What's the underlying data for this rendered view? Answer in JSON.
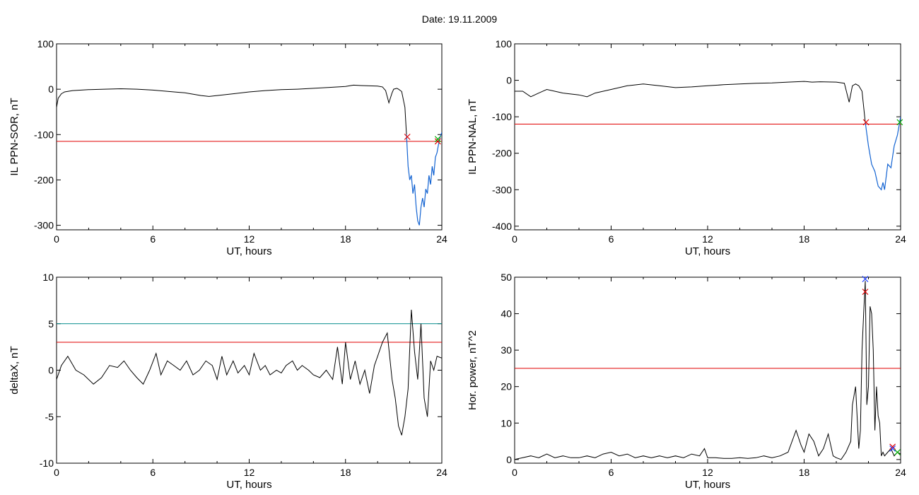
{
  "page": {
    "title": "Date:  19.11.2009"
  },
  "colors": {
    "trace": "#000000",
    "highlight": "#1464d2",
    "red": "#e00000",
    "green": "#00b000",
    "teal": "#008c8c",
    "blue": "#2040ff"
  },
  "chart_data": [
    {
      "type": "line",
      "xlabel": "UT, hours",
      "ylabel": "IL PPN-SOR, nT",
      "xlim": [
        0,
        24
      ],
      "ylim": [
        -310,
        100
      ],
      "xticks": [
        0,
        6,
        12,
        18,
        24
      ],
      "yticks": [
        100,
        0,
        -100,
        -200,
        -300
      ],
      "series": [
        {
          "x": [
            0,
            0.1,
            0.3,
            0.5,
            1,
            2,
            3,
            4,
            5,
            6,
            7,
            8,
            9,
            9.5,
            10,
            11,
            12,
            13,
            14,
            15,
            16,
            17,
            18,
            18.5,
            19,
            20,
            20.3,
            20.5,
            20.7,
            20.9,
            21,
            21.2,
            21.3,
            21.5,
            21.7,
            21.8,
            21.9,
            22,
            22.1,
            22.2,
            22.3,
            22.4,
            22.5,
            22.6,
            22.7,
            22.8,
            22.9,
            23,
            23.1,
            23.2,
            23.3,
            23.4,
            23.5,
            23.6,
            23.7,
            23.8,
            23.9,
            24
          ],
          "y": [
            -40,
            -20,
            -10,
            -6,
            -3,
            -1,
            0,
            1,
            0,
            -2,
            -5,
            -8,
            -14,
            -16,
            -14,
            -10,
            -6,
            -3,
            -1,
            0,
            2,
            4,
            6,
            9,
            8,
            7,
            5,
            -3,
            -30,
            -8,
            0,
            2,
            0,
            -5,
            -40,
            -100,
            -170,
            -200,
            -190,
            -230,
            -210,
            -260,
            -290,
            -300,
            -260,
            -240,
            -260,
            -220,
            -230,
            -190,
            -210,
            -170,
            -190,
            -150,
            -140,
            -120,
            -105,
            -95
          ],
          "highlight_from_x": 21.8
        }
      ],
      "threshold_lines": [
        {
          "y": -115,
          "color": "red"
        }
      ],
      "markers": [
        {
          "x": 21.85,
          "y": -105,
          "shape": "x",
          "color": "red"
        },
        {
          "x": 23.75,
          "y": -115,
          "shape": "x",
          "color": "red"
        },
        {
          "x": 23.75,
          "y": -110,
          "shape": "x",
          "color": "green"
        }
      ]
    },
    {
      "type": "line",
      "xlabel": "UT, hours",
      "ylabel": "IL PPN-NAL, nT",
      "xlim": [
        0,
        24
      ],
      "ylim": [
        -410,
        100
      ],
      "xticks": [
        0,
        6,
        12,
        18,
        24
      ],
      "yticks": [
        100,
        0,
        -100,
        -200,
        -300,
        -400
      ],
      "series": [
        {
          "x": [
            0,
            0.5,
            1,
            1.5,
            2,
            3,
            4,
            4.5,
            5,
            6,
            7,
            8,
            9,
            10,
            11,
            12,
            13,
            14,
            15,
            16,
            17,
            18,
            18.5,
            19,
            20,
            20.5,
            20.8,
            21,
            21.2,
            21.4,
            21.6,
            21.8,
            22,
            22.2,
            22.4,
            22.6,
            22.8,
            22.9,
            23,
            23.2,
            23.4,
            23.6,
            23.8,
            24
          ],
          "y": [
            -30,
            -30,
            -45,
            -35,
            -25,
            -35,
            -40,
            -45,
            -35,
            -25,
            -15,
            -10,
            -15,
            -20,
            -18,
            -15,
            -12,
            -10,
            -8,
            -7,
            -5,
            -3,
            -5,
            -4,
            -5,
            -8,
            -60,
            -15,
            -10,
            -15,
            -30,
            -115,
            -180,
            -230,
            -250,
            -290,
            -300,
            -280,
            -300,
            -230,
            -240,
            -180,
            -150,
            -100
          ],
          "highlight_from_x": 21.8
        }
      ],
      "threshold_lines": [
        {
          "y": -120,
          "color": "red"
        }
      ],
      "markers": [
        {
          "x": 21.85,
          "y": -115,
          "shape": "x",
          "color": "red"
        },
        {
          "x": 23.95,
          "y": -115,
          "shape": "x",
          "color": "green"
        }
      ]
    },
    {
      "type": "line",
      "xlabel": "UT, hours",
      "ylabel": "deltaX, nT",
      "xlim": [
        0,
        24
      ],
      "ylim": [
        -10,
        10
      ],
      "xticks": [
        0,
        6,
        12,
        18,
        24
      ],
      "yticks": [
        10,
        5,
        0,
        -5,
        -10
      ],
      "series": [
        {
          "x": [
            0,
            0.3,
            0.7,
            1.2,
            1.7,
            2.3,
            2.8,
            3.3,
            3.8,
            4.2,
            4.6,
            5,
            5.4,
            5.8,
            6.2,
            6.5,
            6.9,
            7.3,
            7.7,
            8.1,
            8.5,
            8.9,
            9.3,
            9.7,
            10,
            10.3,
            10.6,
            11,
            11.3,
            11.7,
            12,
            12.3,
            12.7,
            13,
            13.3,
            13.7,
            14,
            14.3,
            14.7,
            15,
            15.3,
            15.7,
            16,
            16.4,
            16.8,
            17.2,
            17.5,
            17.8,
            18,
            18.3,
            18.6,
            18.9,
            19.2,
            19.5,
            19.8,
            20,
            20.3,
            20.6,
            20.9,
            21.1,
            21.3,
            21.5,
            21.7,
            21.9,
            22.1,
            22.3,
            22.5,
            22.7,
            22.9,
            23.1,
            23.3,
            23.5,
            23.7,
            24
          ],
          "y": [
            -1,
            0.5,
            1.5,
            0,
            -0.5,
            -1.5,
            -0.8,
            0.5,
            0.3,
            1,
            0,
            -0.8,
            -1.5,
            0,
            1.8,
            -0.5,
            1,
            0.5,
            0,
            1,
            -0.5,
            0,
            1,
            0.5,
            -1,
            1.5,
            -0.5,
            1,
            -0.3,
            0.5,
            -0.5,
            1.8,
            0,
            0.5,
            -0.5,
            0,
            -0.3,
            0.5,
            1,
            0,
            0.5,
            0,
            -0.5,
            -0.8,
            0,
            -1,
            2.5,
            -1.5,
            3,
            -1,
            1,
            -1.5,
            0,
            -2.5,
            0.5,
            1.5,
            3,
            4,
            -1,
            -3,
            -6,
            -7,
            -5,
            -2,
            6.5,
            2,
            -1,
            5,
            -3,
            -5,
            1,
            0,
            1.5,
            1.3
          ]
        }
      ],
      "threshold_lines": [
        {
          "y": 5,
          "color": "teal"
        },
        {
          "y": 3,
          "color": "red"
        }
      ],
      "markers": []
    },
    {
      "type": "line",
      "xlabel": "UT, hours",
      "ylabel": "Hor. power, nT^2",
      "xlim": [
        0,
        24
      ],
      "ylim": [
        -1,
        50
      ],
      "xticks": [
        0,
        6,
        12,
        18,
        24
      ],
      "yticks": [
        50,
        40,
        30,
        20,
        10,
        0
      ],
      "series": [
        {
          "x": [
            0,
            0.5,
            1,
            1.5,
            2,
            2.5,
            3,
            3.5,
            4,
            4.5,
            5,
            5.5,
            6,
            6.5,
            7,
            7.5,
            8,
            8.5,
            9,
            9.5,
            10,
            10.5,
            11,
            11.5,
            11.8,
            12,
            12.5,
            13,
            13.5,
            14,
            14.5,
            15,
            15.5,
            16,
            16.5,
            17,
            17.5,
            17.8,
            18,
            18.3,
            18.6,
            18.9,
            19.2,
            19.5,
            19.8,
            20,
            20.3,
            20.6,
            20.9,
            21,
            21.2,
            21.4,
            21.5,
            21.6,
            21.7,
            21.8,
            21.9,
            22,
            22.1,
            22.2,
            22.3,
            22.4,
            22.5,
            22.6,
            22.7,
            22.8,
            22.9,
            23,
            23.2,
            23.4,
            23.6,
            23.8,
            24
          ],
          "y": [
            0,
            0.5,
            1,
            0.5,
            1.5,
            0.5,
            1,
            0.5,
            0.5,
            1,
            0.5,
            1.5,
            2,
            1,
            1.5,
            0.5,
            1,
            0.5,
            1,
            0.5,
            1,
            0.5,
            1.5,
            1,
            3,
            0.5,
            0.5,
            0.3,
            0.3,
            0.5,
            0.3,
            0.5,
            1,
            0.5,
            1,
            2,
            8,
            4,
            2,
            7,
            5,
            1,
            3,
            7,
            1,
            0.5,
            0,
            2,
            5,
            15,
            20,
            3,
            8,
            30,
            40,
            49,
            15,
            20,
            42,
            40,
            30,
            8,
            20,
            12,
            10,
            1,
            2,
            1,
            2,
            3,
            1,
            2,
            1.5
          ],
          "highlight_from_x": null
        }
      ],
      "threshold_lines": [
        {
          "y": 25,
          "color": "red"
        }
      ],
      "markers": [
        {
          "x": 21.8,
          "y": 46,
          "shape": "x",
          "color": "red"
        },
        {
          "x": 21.8,
          "y": 49.5,
          "shape": "x",
          "color": "blue"
        },
        {
          "x": 23.5,
          "y": 3.5,
          "shape": "x",
          "color": "red"
        },
        {
          "x": 23.8,
          "y": 2,
          "shape": "x",
          "color": "green"
        },
        {
          "x": 23.5,
          "y": 3,
          "shape": "x",
          "color": "blue"
        }
      ]
    }
  ]
}
